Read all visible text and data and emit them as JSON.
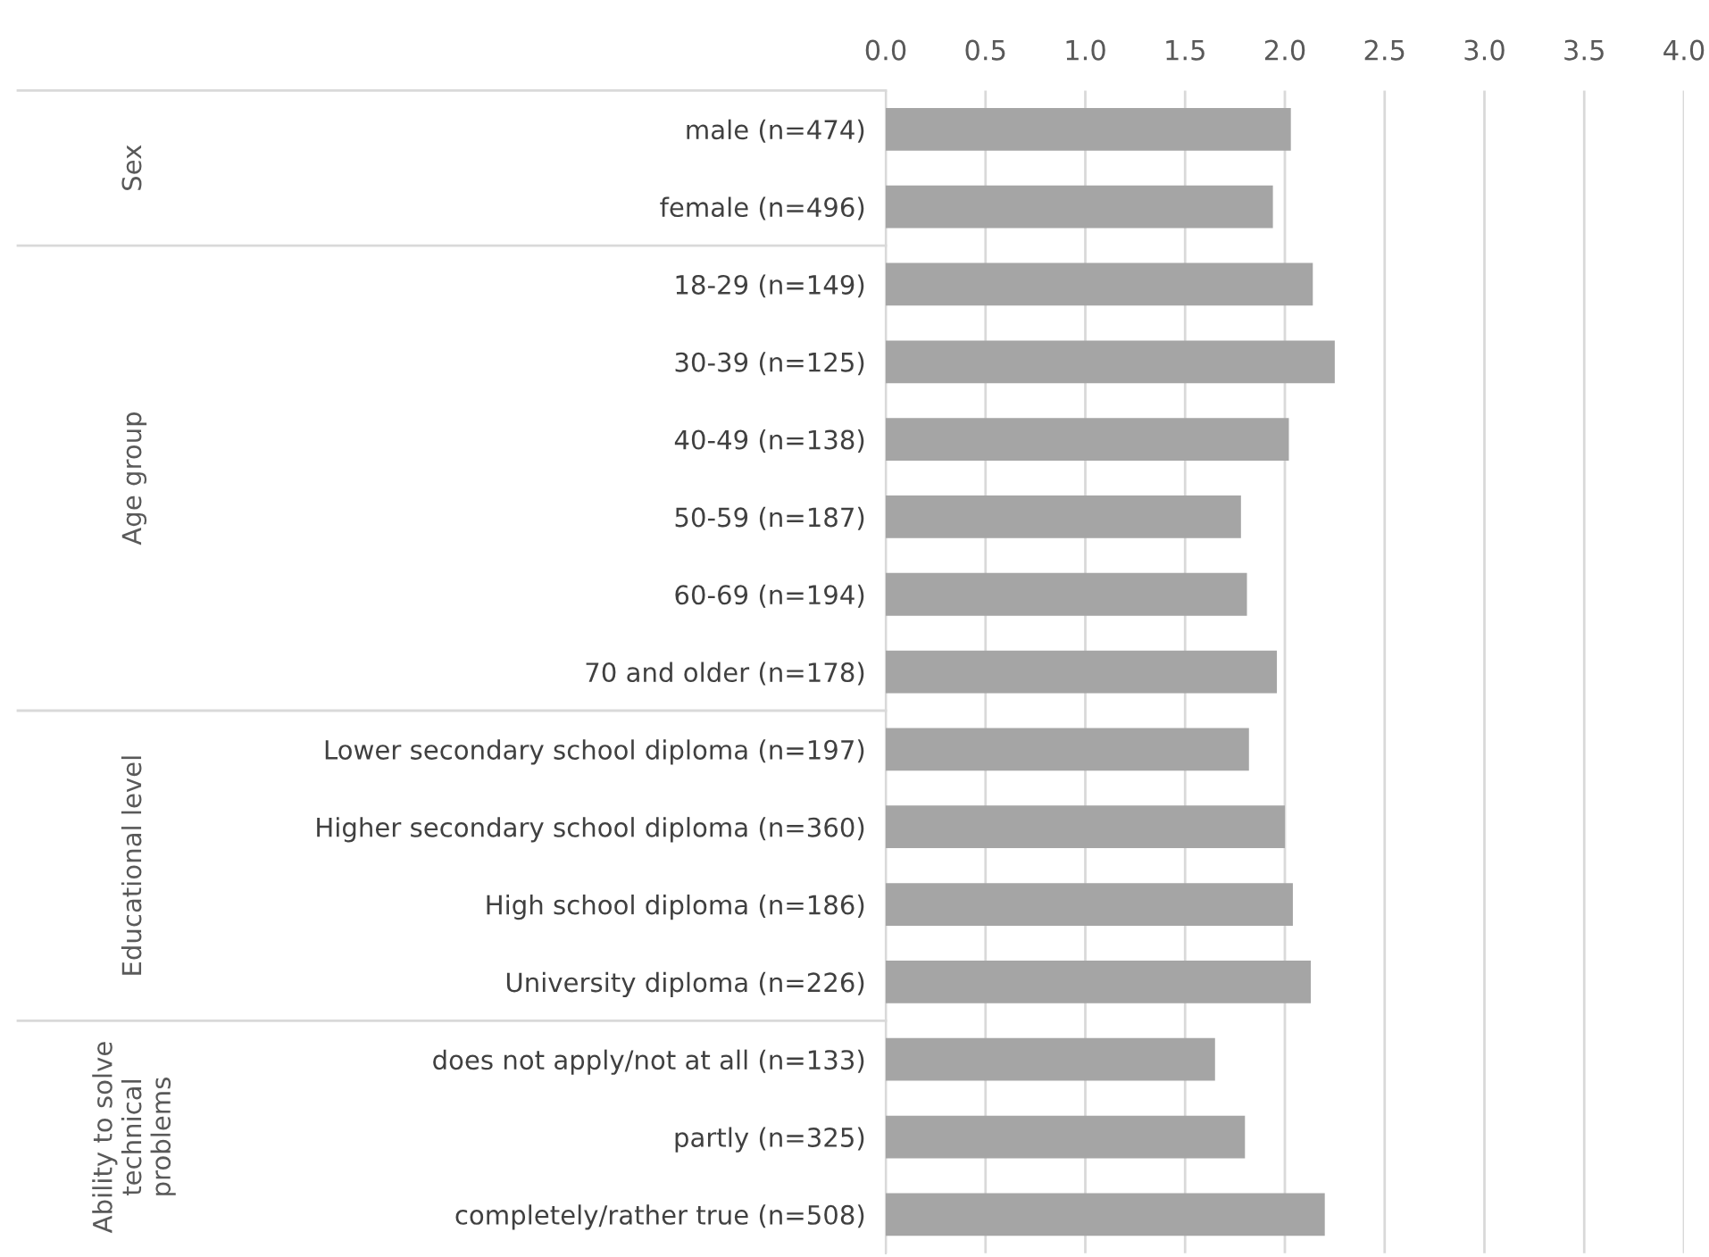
{
  "chart_data": {
    "type": "bar",
    "orientation": "horizontal",
    "categories": [
      "male (n=474)",
      "female (n=496)",
      "18-29 (n=149)",
      "30-39 (n=125)",
      "40-49 (n=138)",
      "50-59 (n=187)",
      "60-69 (n=194)",
      "70 and older (n=178)",
      "Lower secondary school diploma (n=197)",
      "Higher secondary school diploma (n=360)",
      "High school diploma (n=186)",
      "University diploma (n=226)",
      "does not apply/not at all (n=133)",
      "partly (n=325)",
      "completely/rather true (n=508)"
    ],
    "values": [
      2.03,
      1.94,
      2.14,
      2.25,
      2.02,
      1.78,
      1.81,
      1.96,
      1.82,
      2.0,
      2.04,
      2.13,
      1.65,
      1.8,
      2.2
    ],
    "color": "#a5a5a5",
    "xlim": [
      0,
      4
    ],
    "xticks": [
      {
        "value": 0,
        "label": "0.0"
      },
      {
        "value": 0.5,
        "label": "0.5"
      },
      {
        "value": 1,
        "label": "1.0"
      },
      {
        "value": 1.5,
        "label": "1.5"
      },
      {
        "value": 2,
        "label": "2.0"
      },
      {
        "value": 2.5,
        "label": "2.5"
      },
      {
        "value": 3,
        "label": "3.0"
      },
      {
        "value": 3.5,
        "label": "3.5"
      },
      {
        "value": 4,
        "label": "4.0"
      }
    ],
    "grid": "x",
    "annotations": [
      "Sex",
      "Age group",
      "Educational level",
      "Ability to solve\ntechnical\nproblems"
    ]
  }
}
